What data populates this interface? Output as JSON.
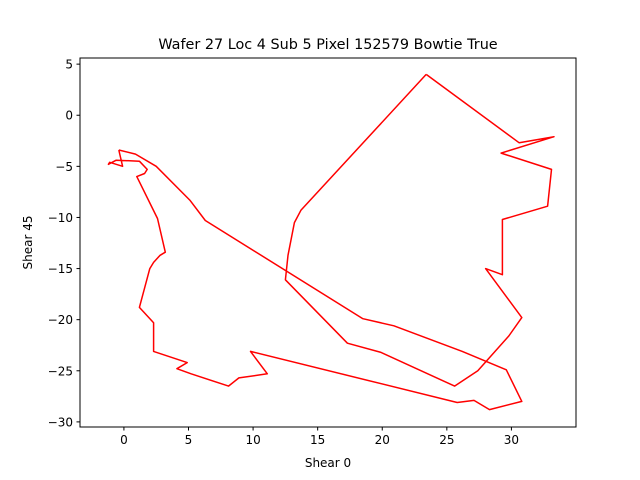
{
  "chart_data": {
    "type": "line",
    "title": "Wafer 27 Loc 4 Sub 5 Pixel 152579 Bowtie True",
    "xlabel": "Shear 0",
    "ylabel": "Shear 45",
    "xlim": [
      -3.4,
      35.0
    ],
    "ylim": [
      -30.5,
      5.6
    ],
    "xticks": [
      0,
      5,
      10,
      15,
      20,
      25,
      30
    ],
    "yticks": [
      5,
      0,
      -5,
      -10,
      -15,
      -20,
      -25,
      -30
    ],
    "grid": false,
    "legend": "none",
    "series": [
      {
        "color": "#ff0000",
        "x": [
          23.4,
          30.6,
          33.3,
          29.2,
          33.1,
          32.8,
          29.3,
          29.3,
          28.0,
          30.8,
          29.8,
          27.4,
          25.6,
          19.9,
          17.3,
          12.5,
          12.7,
          13.2,
          13.7,
          23.4
        ],
        "y": [
          4.0,
          -2.7,
          -2.1,
          -3.7,
          -5.3,
          -8.9,
          -10.2,
          -15.6,
          -15.0,
          -19.8,
          -21.6,
          -25.0,
          -26.5,
          -23.2,
          -22.3,
          -16.1,
          -13.7,
          -10.5,
          -9.3,
          4.0
        ]
      },
      {
        "color": "#ff0000",
        "x": [
          -0.4,
          0.9,
          2.5,
          5.1,
          6.3,
          18.5,
          20.9,
          26.2,
          29.6,
          30.8,
          28.3,
          27.1,
          25.8,
          9.8,
          11.1,
          8.9,
          8.1,
          5.2,
          4.1,
          4.9,
          2.3,
          2.3,
          1.2,
          2.0,
          2.3,
          2.8,
          3.2,
          2.6,
          1.0,
          1.6,
          1.8,
          1.2,
          -0.6,
          -1.2,
          -1.1,
          -0.1,
          -0.4
        ],
        "y": [
          -3.4,
          -3.8,
          -5.0,
          -8.3,
          -10.3,
          -19.9,
          -20.6,
          -23.1,
          -24.9,
          -28.0,
          -28.8,
          -27.9,
          -28.1,
          -23.1,
          -25.3,
          -25.7,
          -26.5,
          -25.3,
          -24.8,
          -24.2,
          -23.1,
          -20.3,
          -18.8,
          -15.0,
          -14.4,
          -13.7,
          -13.4,
          -10.1,
          -6.0,
          -5.7,
          -5.3,
          -4.5,
          -4.4,
          -4.8,
          -4.6,
          -5.0,
          -3.4
        ]
      }
    ]
  }
}
